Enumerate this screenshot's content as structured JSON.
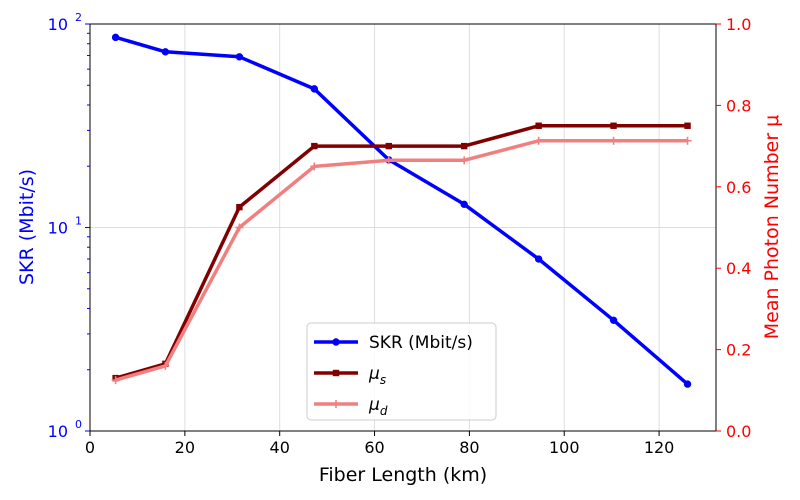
{
  "chart_data": {
    "type": "line",
    "xlabel": "Fiber Length (km)",
    "ylabel_left": "SKR (Mbit/s)",
    "ylabel_right": "Mean Photon Number μ",
    "xlim": [
      0,
      132
    ],
    "ylim_left": [
      1,
      100
    ],
    "ylim_right": [
      0,
      1.0
    ],
    "left_scale": "log",
    "grid": true,
    "legend_position": "lower-center",
    "x_ticks": [
      "0",
      "20",
      "40",
      "60",
      "80",
      "100",
      "120"
    ],
    "x_tick_values": [
      0,
      20,
      40,
      60,
      80,
      100,
      120
    ],
    "y_left_ticks": [
      {
        "value": 1,
        "base": "10",
        "exp": "0"
      },
      {
        "value": 10,
        "base": "10",
        "exp": "1"
      },
      {
        "value": 100,
        "base": "10",
        "exp": "2"
      }
    ],
    "y_right_ticks": [
      "0.0",
      "0.2",
      "0.4",
      "0.6",
      "0.8",
      "1.0"
    ],
    "y_right_tick_values": [
      0,
      0.2,
      0.4,
      0.6,
      0.8,
      1.0
    ],
    "x": [
      5.4,
      15.9,
      31.5,
      47.3,
      63.0,
      78.9,
      94.6,
      110.4,
      126.0
    ],
    "series": [
      {
        "name": "SKR (Mbit/s)",
        "axis": "left",
        "color": "#0000ff",
        "marker": "circle",
        "values": [
          86,
          73,
          69,
          48,
          21.5,
          13,
          7,
          3.5,
          1.7
        ]
      },
      {
        "name": "μs",
        "label_base": "μ",
        "label_sub": "s",
        "axis": "right",
        "color": "#800000",
        "marker": "square",
        "values": [
          0.13,
          0.165,
          0.55,
          0.7,
          0.7,
          0.7,
          0.75,
          0.75,
          0.75
        ]
      },
      {
        "name": "μd",
        "label_base": "μ",
        "label_sub": "d",
        "axis": "right",
        "color": "#f08080",
        "marker": "plus",
        "values": [
          0.125,
          0.16,
          0.5,
          0.65,
          0.665,
          0.665,
          0.713,
          0.713,
          0.713
        ]
      }
    ],
    "colors": {
      "left_axis": "#0000ff",
      "right_axis": "#ff0000"
    }
  }
}
